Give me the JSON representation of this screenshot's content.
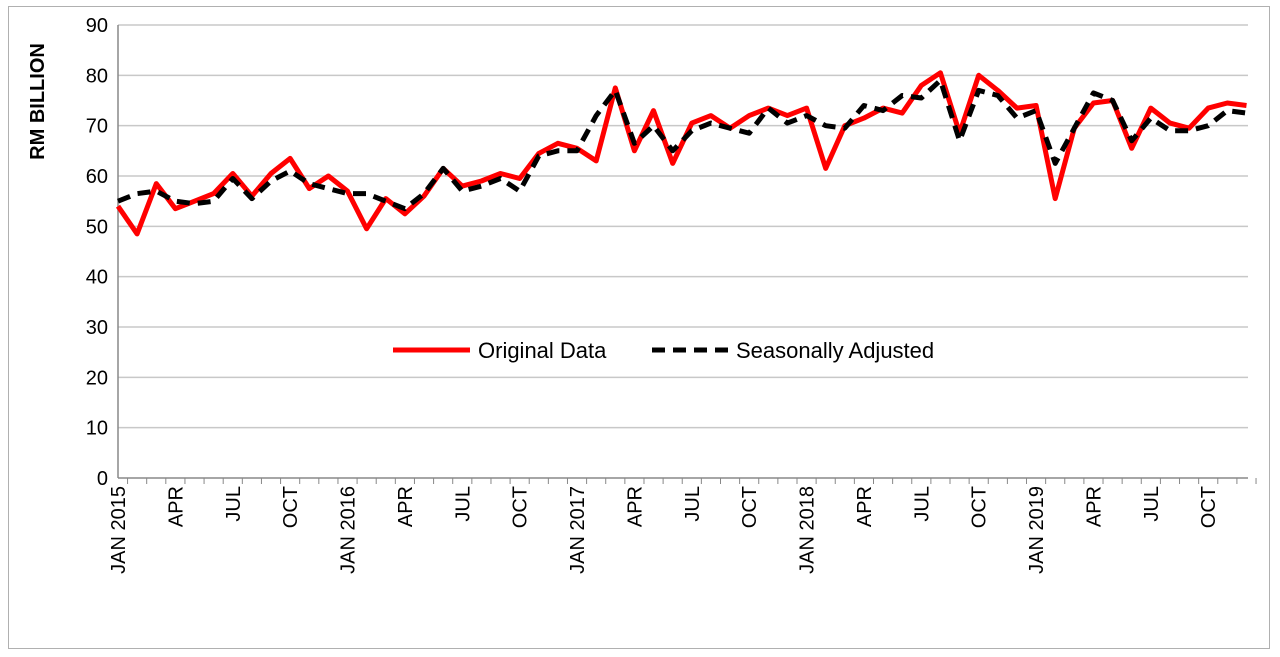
{
  "chart_data": {
    "type": "line",
    "title": "",
    "xlabel": "",
    "ylabel": "RM BILLION",
    "ylim": [
      0,
      90
    ],
    "yticks": [
      0,
      10,
      20,
      30,
      40,
      50,
      60,
      70,
      80,
      90
    ],
    "grid": true,
    "legend_position": "center",
    "x_tick_labels": [
      "JAN 2015",
      "APR",
      "JUL",
      "OCT",
      "JAN 2016",
      "APR",
      "JUL",
      "OCT",
      "JAN 2017",
      "APR",
      "JUL",
      "OCT",
      "JAN 2018",
      "APR",
      "JUL",
      "OCT",
      "JAN 2019",
      "APR",
      "JUL",
      "OCT"
    ],
    "months": 60,
    "series": [
      {
        "name": "Original Data",
        "color": "#ff0000",
        "style": "solid",
        "values": [
          54,
          48.5,
          58.5,
          53.5,
          55,
          56.5,
          60.5,
          56,
          60.5,
          63.5,
          57.5,
          60,
          57,
          49.5,
          55.5,
          52.5,
          56,
          61.5,
          58,
          59,
          60.5,
          59.5,
          64.5,
          66.5,
          65.5,
          63,
          77.5,
          65,
          73,
          62.5,
          70.5,
          72,
          69.5,
          72,
          73.5,
          72,
          73.5,
          61.5,
          70,
          71.5,
          73.5,
          72.5,
          78,
          80.5,
          68.5,
          80,
          77,
          73.5,
          74,
          55.5,
          69.5,
          74.5,
          75,
          65.5,
          73.5,
          70.5,
          69.5,
          73.5,
          74.5,
          74
        ]
      },
      {
        "name": "Seasonally Adjusted",
        "color": "#000000",
        "style": "dashed",
        "values": [
          55,
          56.5,
          57,
          55,
          54.5,
          55,
          59.5,
          55.5,
          59,
          61,
          58.5,
          57.5,
          56.5,
          56.5,
          55,
          53.5,
          56.5,
          61.5,
          57,
          58,
          59.5,
          57,
          64,
          65,
          65,
          72,
          77,
          66.5,
          70,
          65,
          69,
          70.5,
          69.5,
          68.5,
          73.5,
          70.5,
          72,
          70,
          69.5,
          74,
          73,
          76,
          75.5,
          79,
          67,
          77,
          76,
          71.5,
          73,
          62.5,
          69.5,
          76.5,
          75,
          67,
          71.5,
          69,
          69,
          70,
          73,
          72.5
        ]
      }
    ]
  }
}
